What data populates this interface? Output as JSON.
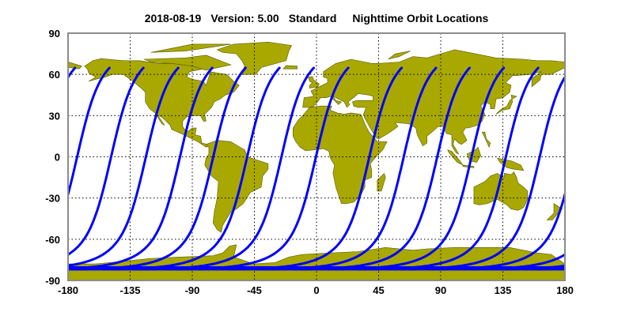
{
  "title": {
    "date": "2018-08-19",
    "version": "Version: 5.00",
    "product": "Standard",
    "subject": "Nighttime Orbit Locations"
  },
  "map": {
    "projection": "equirectangular",
    "lon_range": [
      -180,
      180
    ],
    "lat_range": [
      -90,
      90
    ],
    "x_ticks": [
      "-180",
      "-135",
      "-90",
      "-45",
      "0",
      "45",
      "90",
      "135",
      "180"
    ],
    "y_ticks": [
      "90",
      "60",
      "30",
      "0",
      "-30",
      "-60",
      "-90"
    ],
    "grid": true,
    "land_color": "#a8a800",
    "coast_color": "#5a5a00",
    "track_color": "#0000ff",
    "frame_color": "#8c8c8c"
  },
  "orbit_tracks": {
    "equator_crossing_lon": [
      -173.4,
      -148.8,
      -123.6,
      -98.9,
      -74.8,
      -50.2,
      -25.4,
      -0.4,
      38.3,
      63.2,
      87.5,
      112.3,
      137.2,
      161.7
    ],
    "max_lat": 65,
    "min_lat": -82
  }
}
